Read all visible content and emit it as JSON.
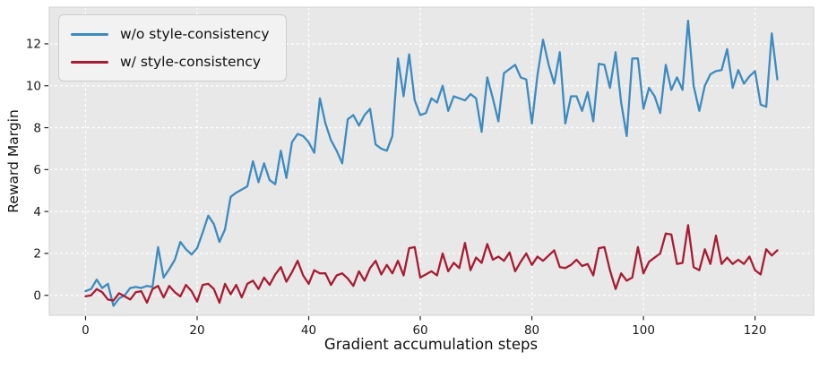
{
  "colors": {
    "figure_background": "#ffffff",
    "plot_background": "#e8e8e8",
    "grid": "#ffffff",
    "spine": "#cfcfcf",
    "tick": "#262626",
    "text": "#1a1a1a",
    "series_blue": "#3d8bbf",
    "series_red": "#a81c33"
  },
  "chart_data": {
    "type": "line",
    "title": "",
    "xlabel": "Gradient accumulation steps",
    "ylabel": "Reward Margin",
    "grid": true,
    "grid_style": "dashed",
    "legend_position": "upper-left",
    "xlim": [
      -6.5,
      130.5
    ],
    "ylim": [
      -0.95,
      13.75
    ],
    "x_ticks": [
      0,
      20,
      40,
      60,
      80,
      100,
      120
    ],
    "y_ticks": [
      0,
      2,
      4,
      6,
      8,
      10,
      12
    ],
    "x_range": [
      0,
      124
    ],
    "x_step": 1,
    "series": [
      {
        "name": "w/o style-consistency",
        "color": "#3d8bbf",
        "values": [
          0.2,
          0.3,
          0.75,
          0.35,
          0.55,
          -0.5,
          -0.15,
          0.0,
          0.35,
          0.4,
          0.35,
          0.45,
          0.4,
          2.3,
          0.85,
          1.25,
          1.7,
          2.55,
          2.2,
          1.95,
          2.25,
          3.0,
          3.8,
          3.4,
          2.55,
          3.15,
          4.7,
          4.9,
          5.05,
          5.2,
          6.4,
          5.4,
          6.3,
          5.5,
          5.3,
          6.9,
          5.6,
          7.3,
          7.7,
          7.6,
          7.3,
          6.8,
          9.4,
          8.2,
          7.4,
          6.9,
          6.3,
          8.4,
          8.6,
          8.1,
          8.6,
          8.9,
          7.2,
          7.0,
          6.9,
          7.6,
          11.3,
          9.5,
          11.5,
          9.3,
          8.6,
          8.7,
          9.4,
          9.2,
          10.0,
          8.8,
          9.5,
          9.4,
          9.3,
          9.6,
          9.4,
          7.8,
          10.4,
          9.4,
          8.3,
          10.6,
          10.8,
          11.0,
          10.4,
          10.3,
          8.2,
          10.5,
          12.2,
          11.0,
          10.1,
          11.6,
          8.2,
          9.5,
          9.5,
          8.8,
          9.7,
          8.3,
          11.05,
          11.0,
          9.9,
          11.6,
          9.2,
          7.6,
          11.3,
          11.3,
          8.9,
          9.9,
          9.5,
          8.7,
          11.0,
          9.8,
          10.4,
          9.8,
          13.1,
          10.0,
          8.8,
          10.0,
          10.55,
          10.7,
          10.75,
          11.75,
          9.9,
          10.75,
          10.1,
          10.45,
          10.7,
          9.1,
          9.0,
          12.5,
          10.3
        ]
      },
      {
        "name": "w/ style-consistency",
        "color": "#a81c33",
        "values": [
          -0.05,
          0.0,
          0.3,
          0.15,
          -0.2,
          -0.25,
          0.1,
          -0.05,
          -0.2,
          0.15,
          0.2,
          -0.35,
          0.3,
          0.45,
          -0.1,
          0.45,
          0.15,
          -0.05,
          0.5,
          0.2,
          -0.3,
          0.5,
          0.55,
          0.3,
          -0.35,
          0.55,
          0.05,
          0.5,
          -0.1,
          0.55,
          0.7,
          0.3,
          0.85,
          0.5,
          1.0,
          1.35,
          0.65,
          1.1,
          1.65,
          0.95,
          0.55,
          1.2,
          1.05,
          1.05,
          0.5,
          0.95,
          1.05,
          0.8,
          0.45,
          1.15,
          0.7,
          1.3,
          1.65,
          1.0,
          1.45,
          1.05,
          1.65,
          0.95,
          2.25,
          2.3,
          0.85,
          1.0,
          1.15,
          0.95,
          2.0,
          1.15,
          1.55,
          1.3,
          2.5,
          1.2,
          1.8,
          1.55,
          2.45,
          1.7,
          1.85,
          1.65,
          2.05,
          1.15,
          1.6,
          2.0,
          1.45,
          1.85,
          1.65,
          1.9,
          2.15,
          1.35,
          1.3,
          1.45,
          1.7,
          1.4,
          1.5,
          0.95,
          2.25,
          2.3,
          1.2,
          0.3,
          1.05,
          0.7,
          0.85,
          2.3,
          1.05,
          1.6,
          1.8,
          2.0,
          2.95,
          2.9,
          1.5,
          1.55,
          3.35,
          1.35,
          1.2,
          2.2,
          1.5,
          2.85,
          1.5,
          1.8,
          1.5,
          1.7,
          1.5,
          1.85,
          1.2,
          1.0,
          2.2,
          1.9,
          2.15
        ]
      }
    ]
  }
}
